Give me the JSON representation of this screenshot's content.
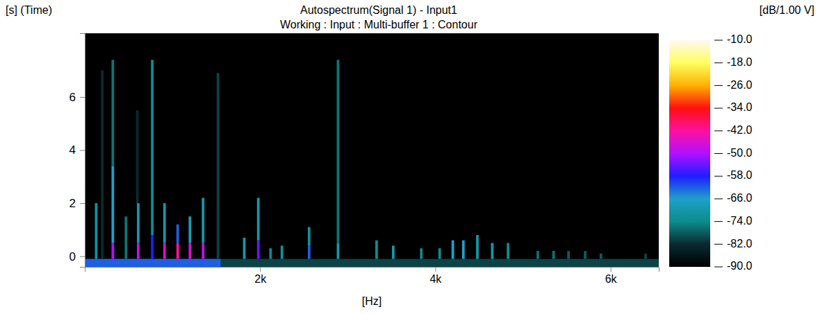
{
  "chart_data": {
    "type": "heatmap",
    "title": "Autospectrum(Signal 1) - Input1",
    "subtitle": "Working : Input : Multi-buffer 1 : Contour",
    "x_label": "[Hz]",
    "y_label": "[s] (Time)",
    "xlim": [
      0,
      6550
    ],
    "xticks": [
      {
        "value": 2000,
        "label": "2k"
      },
      {
        "value": 4000,
        "label": "4k"
      },
      {
        "value": 6000,
        "label": "6k"
      }
    ],
    "ylim": [
      -0.4,
      8.4
    ],
    "yticks": [
      0,
      2,
      4,
      6
    ],
    "cells": [
      [
        0,
        6550,
        -0.4,
        -0.1,
        -80
      ],
      [
        0,
        1550,
        -0.4,
        -0.1,
        -62
      ],
      [
        115,
        145,
        -0.1,
        2.0,
        -72
      ],
      [
        185,
        215,
        -0.1,
        7.0,
        -82
      ],
      [
        305,
        335,
        -0.1,
        0.5,
        -50
      ],
      [
        305,
        335,
        0.5,
        3.4,
        -66
      ],
      [
        305,
        335,
        3.4,
        7.4,
        -76
      ],
      [
        455,
        485,
        -0.1,
        1.5,
        -76
      ],
      [
        585,
        615,
        2.0,
        5.5,
        -82
      ],
      [
        595,
        625,
        -0.1,
        0.5,
        -48
      ],
      [
        595,
        625,
        0.5,
        2.0,
        -70
      ],
      [
        755,
        785,
        -0.1,
        0.8,
        -58
      ],
      [
        755,
        785,
        0.8,
        7.4,
        -74
      ],
      [
        895,
        925,
        -0.1,
        0.5,
        -46
      ],
      [
        895,
        925,
        0.5,
        2.0,
        -70
      ],
      [
        1045,
        1075,
        -0.1,
        0.5,
        -42
      ],
      [
        1045,
        1075,
        0.5,
        1.2,
        -62
      ],
      [
        1185,
        1215,
        -0.1,
        0.5,
        -46
      ],
      [
        1185,
        1215,
        0.5,
        1.5,
        -68
      ],
      [
        1335,
        1365,
        -0.1,
        0.5,
        -48
      ],
      [
        1335,
        1365,
        0.5,
        2.2,
        -70
      ],
      [
        1505,
        1535,
        -0.1,
        6.9,
        -80
      ],
      [
        1805,
        1835,
        -0.1,
        0.7,
        -70
      ],
      [
        1965,
        1995,
        -0.1,
        0.6,
        -54
      ],
      [
        1965,
        1995,
        0.6,
        2.2,
        -70
      ],
      [
        2105,
        2135,
        -0.1,
        0.3,
        -74
      ],
      [
        2235,
        2265,
        -0.1,
        0.4,
        -72
      ],
      [
        2545,
        2575,
        -0.1,
        0.4,
        -62
      ],
      [
        2545,
        2575,
        0.4,
        1.1,
        -72
      ],
      [
        2875,
        2905,
        -0.1,
        0.5,
        -70
      ],
      [
        2875,
        2905,
        0.5,
        7.4,
        -76
      ],
      [
        3315,
        3345,
        -0.1,
        0.6,
        -74
      ],
      [
        3505,
        3535,
        -0.1,
        0.4,
        -70
      ],
      [
        3825,
        3855,
        -0.1,
        0.3,
        -74
      ],
      [
        4035,
        4065,
        -0.1,
        0.3,
        -74
      ],
      [
        4185,
        4215,
        -0.1,
        0.6,
        -66
      ],
      [
        4305,
        4335,
        -0.1,
        0.6,
        -66
      ],
      [
        4465,
        4495,
        -0.1,
        0.8,
        -70
      ],
      [
        4635,
        4665,
        -0.1,
        0.5,
        -70
      ],
      [
        4815,
        4845,
        -0.1,
        0.5,
        -74
      ],
      [
        5155,
        5185,
        -0.1,
        0.2,
        -76
      ],
      [
        5335,
        5365,
        -0.1,
        0.2,
        -76
      ],
      [
        5505,
        5535,
        -0.1,
        0.2,
        -78
      ],
      [
        5695,
        5725,
        -0.1,
        0.2,
        -78
      ],
      [
        5875,
        5905,
        -0.1,
        0.1,
        -78
      ],
      [
        6385,
        6415,
        -0.1,
        0.1,
        -80
      ]
    ],
    "colorbar": {
      "label": "[dB/1.00 V]",
      "range": [
        -90,
        -10
      ],
      "ticks": [
        {
          "value": -10,
          "label": "-10.0"
        },
        {
          "value": -18,
          "label": "-18.0"
        },
        {
          "value": -26,
          "label": "-26.0"
        },
        {
          "value": -34,
          "label": "-34.0"
        },
        {
          "value": -42,
          "label": "-42.0"
        },
        {
          "value": -50,
          "label": "-50.0"
        },
        {
          "value": -58,
          "label": "-58.0"
        },
        {
          "value": -66,
          "label": "-66.0"
        },
        {
          "value": -74,
          "label": "-74.0"
        },
        {
          "value": -82,
          "label": "-82.0"
        },
        {
          "value": -90,
          "label": "-90.0"
        }
      ],
      "colors": [
        "#000000",
        "#0a2a30",
        "#0e8c8c",
        "#1fa0c8",
        "#1e1eff",
        "#b010ff",
        "#ff10a0",
        "#ff1010",
        "#ffb000",
        "#ffff60",
        "#fff8f0"
      ]
    }
  }
}
